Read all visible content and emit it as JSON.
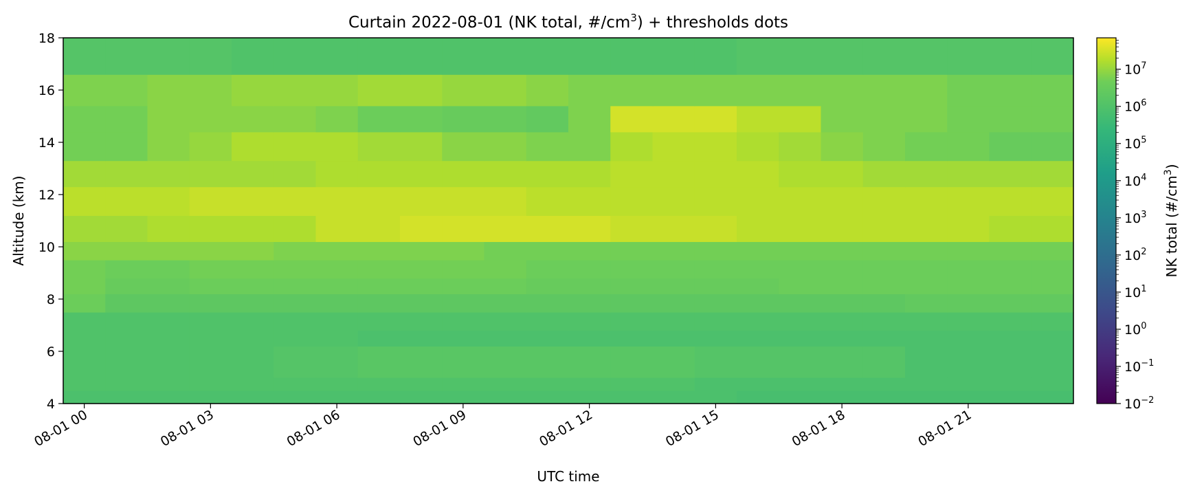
{
  "chart_data": {
    "type": "heatmap",
    "title": "Curtain 2022-08-01 (NK total, #/cm",
    "title_sup": "3",
    "title_suffix": ") + thresholds dots",
    "xlabel": "UTC time",
    "ylabel": "Altitude (km)",
    "colorbar_label": "NK total (#/cm",
    "colorbar_label_sup": "3",
    "colorbar_label_suffix": ")",
    "colormap": "viridis",
    "color_scale": "log",
    "clim": [
      0.01,
      70000000
    ],
    "x_tick_labels": [
      "08-01 00",
      "08-01 03",
      "08-01 06",
      "08-01 09",
      "08-01 12",
      "08-01 15",
      "08-01 18",
      "08-01 21"
    ],
    "x_tick_hours": [
      0,
      3,
      6,
      9,
      12,
      15,
      18,
      21
    ],
    "xlim_hours": [
      -0.5,
      23.5
    ],
    "y_ticks": [
      4,
      6,
      8,
      10,
      12,
      14,
      16,
      18
    ],
    "ylim": [
      4,
      18
    ],
    "colorbar_ticks": [
      {
        "base": "10",
        "exp": "−2",
        "value": -2
      },
      {
        "base": "10",
        "exp": "−1",
        "value": -1
      },
      {
        "base": "10",
        "exp": "0",
        "value": 0
      },
      {
        "base": "10",
        "exp": "1",
        "value": 1
      },
      {
        "base": "10",
        "exp": "2",
        "value": 2
      },
      {
        "base": "10",
        "exp": "3",
        "value": 3
      },
      {
        "base": "10",
        "exp": "4",
        "value": 4
      },
      {
        "base": "10",
        "exp": "5",
        "value": 5
      },
      {
        "base": "10",
        "exp": "6",
        "value": 6
      },
      {
        "base": "10",
        "exp": "7",
        "value": 7
      }
    ],
    "x_centers_hours": [
      0,
      1,
      2,
      3,
      4,
      5,
      6,
      7,
      8,
      9,
      10,
      11,
      12,
      13,
      14,
      15,
      16,
      17,
      18,
      19,
      20,
      21,
      22,
      23
    ],
    "altitude_bands_km": [
      [
        4.0,
        4.5
      ],
      [
        4.5,
        5.0
      ],
      [
        5.0,
        6.2
      ],
      [
        6.2,
        6.8
      ],
      [
        6.8,
        7.5
      ],
      [
        7.5,
        8.2
      ],
      [
        8.2,
        8.8
      ],
      [
        8.8,
        9.5
      ],
      [
        9.5,
        10.2
      ],
      [
        10.2,
        11.2
      ],
      [
        11.2,
        12.3
      ],
      [
        12.3,
        13.3
      ],
      [
        13.3,
        14.4
      ],
      [
        14.4,
        15.4
      ],
      [
        15.4,
        16.6
      ],
      [
        16.6,
        18.0
      ]
    ],
    "log10_values": [
      [
        5.9,
        5.9,
        5.9,
        5.9,
        5.9,
        5.9,
        5.9,
        5.9,
        5.9,
        5.9,
        5.9,
        5.9,
        5.9,
        5.9,
        5.9,
        5.9,
        5.8,
        5.8,
        5.8,
        5.8,
        5.8,
        5.8,
        5.8,
        5.8
      ],
      [
        6.0,
        6.0,
        6.0,
        6.0,
        6.0,
        6.0,
        6.0,
        6.0,
        6.0,
        6.0,
        6.0,
        6.0,
        6.0,
        6.0,
        6.0,
        5.9,
        5.9,
        5.9,
        5.9,
        5.9,
        5.9,
        5.9,
        5.9,
        5.9
      ],
      [
        6.0,
        6.0,
        6.0,
        6.0,
        6.0,
        6.1,
        6.1,
        6.2,
        6.2,
        6.2,
        6.2,
        6.2,
        6.2,
        6.2,
        6.2,
        6.1,
        6.1,
        6.1,
        6.1,
        6.1,
        5.9,
        5.9,
        5.9,
        5.9
      ],
      [
        6.0,
        6.0,
        6.0,
        6.0,
        6.0,
        6.0,
        6.0,
        5.9,
        5.9,
        5.9,
        5.9,
        5.9,
        5.9,
        5.9,
        5.9,
        5.9,
        5.9,
        5.9,
        5.9,
        5.9,
        5.9,
        5.9,
        5.9,
        5.9
      ],
      [
        6.0,
        6.0,
        6.0,
        6.0,
        6.0,
        6.0,
        6.0,
        6.0,
        6.0,
        6.0,
        6.0,
        6.0,
        6.0,
        6.0,
        6.0,
        6.0,
        6.0,
        6.0,
        6.0,
        6.0,
        6.0,
        6.0,
        6.0,
        6.0
      ],
      [
        6.6,
        6.3,
        6.3,
        6.3,
        6.3,
        6.3,
        6.3,
        6.3,
        6.3,
        6.3,
        6.3,
        6.3,
        6.3,
        6.3,
        6.3,
        6.3,
        6.3,
        6.3,
        6.3,
        6.3,
        6.4,
        6.4,
        6.4,
        6.4
      ],
      [
        6.7,
        6.5,
        6.5,
        6.6,
        6.6,
        6.6,
        6.6,
        6.6,
        6.6,
        6.6,
        6.6,
        6.5,
        6.5,
        6.5,
        6.5,
        6.5,
        6.5,
        6.6,
        6.6,
        6.6,
        6.6,
        6.6,
        6.6,
        6.6
      ],
      [
        6.7,
        6.6,
        6.6,
        6.7,
        6.7,
        6.7,
        6.7,
        6.7,
        6.7,
        6.7,
        6.7,
        6.6,
        6.6,
        6.6,
        6.6,
        6.6,
        6.6,
        6.6,
        6.6,
        6.6,
        6.6,
        6.6,
        6.6,
        6.6
      ],
      [
        6.9,
        6.9,
        6.9,
        6.9,
        6.9,
        6.8,
        6.8,
        6.8,
        6.8,
        6.8,
        6.7,
        6.7,
        6.7,
        6.7,
        6.7,
        6.7,
        6.7,
        6.7,
        6.7,
        6.7,
        6.7,
        6.7,
        6.7,
        6.7
      ],
      [
        7.1,
        7.1,
        7.2,
        7.2,
        7.2,
        7.2,
        7.4,
        7.4,
        7.5,
        7.5,
        7.5,
        7.5,
        7.5,
        7.4,
        7.4,
        7.4,
        7.3,
        7.3,
        7.3,
        7.3,
        7.3,
        7.3,
        7.2,
        7.2
      ],
      [
        7.3,
        7.3,
        7.3,
        7.4,
        7.4,
        7.4,
        7.4,
        7.4,
        7.4,
        7.4,
        7.4,
        7.3,
        7.3,
        7.3,
        7.3,
        7.3,
        7.3,
        7.3,
        7.3,
        7.3,
        7.3,
        7.3,
        7.3,
        7.3
      ],
      [
        7.1,
        7.1,
        7.1,
        7.1,
        7.1,
        7.1,
        7.2,
        7.2,
        7.2,
        7.2,
        7.2,
        7.2,
        7.2,
        7.3,
        7.3,
        7.3,
        7.3,
        7.2,
        7.2,
        7.1,
        7.1,
        7.1,
        7.1,
        7.1
      ],
      [
        6.7,
        6.7,
        6.9,
        7.0,
        7.2,
        7.2,
        7.2,
        7.1,
        7.1,
        6.9,
        6.9,
        6.8,
        6.8,
        7.2,
        7.3,
        7.3,
        7.2,
        7.1,
        6.9,
        6.8,
        6.7,
        6.7,
        6.5,
        6.5
      ],
      [
        6.7,
        6.7,
        6.9,
        6.9,
        6.9,
        6.9,
        6.8,
        6.6,
        6.6,
        6.5,
        6.5,
        6.4,
        6.8,
        7.5,
        7.5,
        7.5,
        7.3,
        7.3,
        6.8,
        6.8,
        6.8,
        6.7,
        6.7,
        6.7
      ],
      [
        6.8,
        6.8,
        6.9,
        6.9,
        7.0,
        7.0,
        7.0,
        7.1,
        7.1,
        7.0,
        7.0,
        6.9,
        6.8,
        6.8,
        6.8,
        6.8,
        6.8,
        6.8,
        6.8,
        6.8,
        6.8,
        6.7,
        6.7,
        6.7
      ],
      [
        6.1,
        6.1,
        6.1,
        6.1,
        6.0,
        6.0,
        6.0,
        6.0,
        6.0,
        6.0,
        6.0,
        6.0,
        6.0,
        6.0,
        6.0,
        6.0,
        6.1,
        6.1,
        6.1,
        6.1,
        6.1,
        6.1,
        6.1,
        6.1
      ]
    ]
  }
}
